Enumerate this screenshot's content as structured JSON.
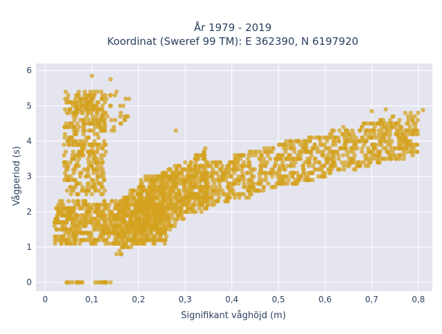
{
  "chart_data": {
    "type": "scatter",
    "title": "År 1979 - 2019",
    "subtitle": "Koordinat (Sweref 99 TM): E 362390, N 6197920",
    "xlabel": "Signifikant våghöjd (m)",
    "ylabel": "Vågperiod (s)",
    "xlim": [
      -0.02,
      0.83
    ],
    "ylim": [
      -0.25,
      6.2
    ],
    "x_ticks": [
      0,
      0.1,
      0.2,
      0.3,
      0.4,
      0.5,
      0.6,
      0.7,
      0.8
    ],
    "x_tick_labels": [
      "0",
      "0,1",
      "0,2",
      "0,3",
      "0,4",
      "0,5",
      "0,6",
      "0,7",
      "0,8"
    ],
    "y_ticks": [
      0,
      1,
      2,
      3,
      4,
      5,
      6
    ],
    "y_tick_labels": [
      "0",
      "1",
      "2",
      "3",
      "4",
      "5",
      "6"
    ],
    "grid": true,
    "legend": false,
    "marker_color": "#d4a21e",
    "plot_background": "#e5e5ef",
    "cluster_groups": [
      {
        "id": "swell-column",
        "x": [
          0.04,
          0.13
        ],
        "y": [
          2.5,
          5.4
        ],
        "n": 380
      },
      {
        "id": "swell-top",
        "x": [
          0.06,
          0.18
        ],
        "y": [
          4.3,
          5.4
        ],
        "n": 70
      },
      {
        "id": "low-band",
        "x": [
          0.02,
          0.26
        ],
        "y": [
          1.1,
          2.3
        ],
        "n": 700
      },
      {
        "id": "rise-zone",
        "x": [
          0.15,
          0.35
        ],
        "y": [
          1.3,
          3.8
        ],
        "n": 500
      },
      {
        "id": "main-band",
        "x": [
          0.2,
          0.8
        ],
        "y": [
          2.0,
          4.6
        ],
        "n": 1200
      },
      {
        "id": "zero-row",
        "x": [
          0.03,
          0.14
        ],
        "y": [
          0.0,
          0.0
        ],
        "n": 20
      }
    ],
    "notable_points": [
      {
        "x": 0.1,
        "y": 5.85
      },
      {
        "x": 0.14,
        "y": 5.75
      },
      {
        "x": 0.81,
        "y": 4.88
      },
      {
        "x": 0.73,
        "y": 4.9
      },
      {
        "x": 0.7,
        "y": 4.85
      },
      {
        "x": 0.14,
        "y": 0.0
      },
      {
        "x": 0.02,
        "y": 1.6
      },
      {
        "x": 0.28,
        "y": 4.3
      }
    ]
  }
}
